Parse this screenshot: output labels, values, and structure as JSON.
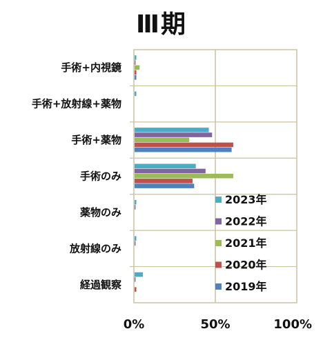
{
  "chart_data": {
    "type": "bar",
    "orientation": "horizontal",
    "title": "Ⅲ期",
    "categories": [
      "手術+内視鏡",
      "手術+放射線+薬物",
      "手術+薬物",
      "手術のみ",
      "薬物のみ",
      "放射線のみ",
      "経過観察"
    ],
    "xlim": [
      0,
      100
    ],
    "xticks": [
      "0%",
      "50%",
      "100%"
    ],
    "grid": true,
    "legend_position": "bottom-right",
    "series": [
      {
        "name": "2023年",
        "color": "#4bacc6",
        "values": [
          1.5,
          1.5,
          46,
          38,
          1.5,
          1.5,
          5.5
        ]
      },
      {
        "name": "2022年",
        "color": "#8064a2",
        "values": [
          1.0,
          0,
          48,
          44,
          1.0,
          1.0,
          1.0
        ]
      },
      {
        "name": "2021年",
        "color": "#9bbb59",
        "values": [
          3.5,
          0,
          34,
          61,
          0,
          0,
          0
        ]
      },
      {
        "name": "2020年",
        "color": "#c0504d",
        "values": [
          1.5,
          0,
          61,
          36,
          0,
          0,
          1.5
        ]
      },
      {
        "name": "2019年",
        "color": "#4f81bd",
        "values": [
          1.5,
          0,
          60,
          37,
          0,
          0,
          0
        ]
      }
    ]
  }
}
